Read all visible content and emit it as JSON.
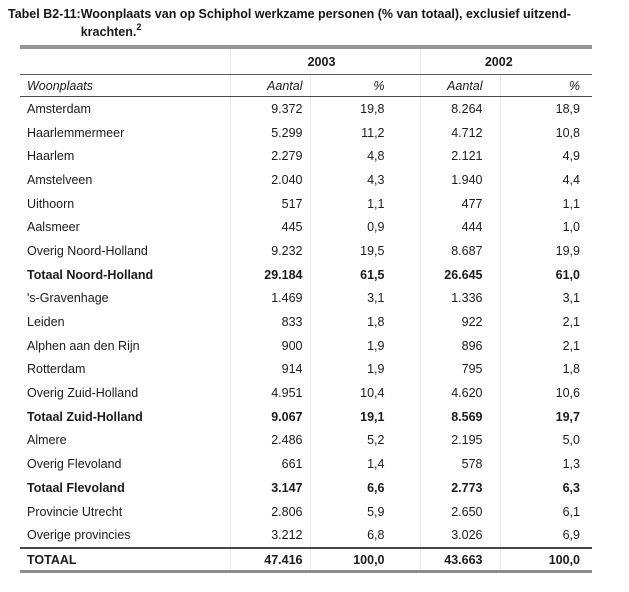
{
  "title": {
    "label": "Tabel B2-11:",
    "line1": "Woonplaats van op Schiphol werkzame personen (% van totaal), exclusief uitzend-",
    "line2": "krachten.",
    "superscript": "2"
  },
  "table": {
    "year_headers": [
      "2003",
      "2002"
    ],
    "columns": [
      "Woonplaats",
      "Aantal",
      "%",
      "Aantal",
      "%"
    ],
    "rows": [
      {
        "name": "Amsterdam",
        "values": [
          "9.372",
          "19,8",
          "8.264",
          "18,9"
        ],
        "bold": false,
        "grand": false
      },
      {
        "name": "Haarlemmermeer",
        "values": [
          "5.299",
          "11,2",
          "4.712",
          "10,8"
        ],
        "bold": false,
        "grand": false
      },
      {
        "name": "Haarlem",
        "values": [
          "2.279",
          "4,8",
          "2.121",
          "4,9"
        ],
        "bold": false,
        "grand": false
      },
      {
        "name": "Amstelveen",
        "values": [
          "2.040",
          "4,3",
          "1.940",
          "4,4"
        ],
        "bold": false,
        "grand": false
      },
      {
        "name": "Uithoorn",
        "values": [
          "517",
          "1,1",
          "477",
          "1,1"
        ],
        "bold": false,
        "grand": false
      },
      {
        "name": "Aalsmeer",
        "values": [
          "445",
          "0,9",
          "444",
          "1,0"
        ],
        "bold": false,
        "grand": false
      },
      {
        "name": "Overig Noord-Holland",
        "values": [
          "9.232",
          "19,5",
          "8.687",
          "19,9"
        ],
        "bold": false,
        "grand": false
      },
      {
        "name": "Totaal Noord-Holland",
        "values": [
          "29.184",
          "61,5",
          "26.645",
          "61,0"
        ],
        "bold": true,
        "grand": false
      },
      {
        "name": "'s-Gravenhage",
        "values": [
          "1.469",
          "3,1",
          "1.336",
          "3,1"
        ],
        "bold": false,
        "grand": false
      },
      {
        "name": "Leiden",
        "values": [
          "833",
          "1,8",
          "922",
          "2,1"
        ],
        "bold": false,
        "grand": false
      },
      {
        "name": "Alphen aan den Rijn",
        "values": [
          "900",
          "1,9",
          "896",
          "2,1"
        ],
        "bold": false,
        "grand": false
      },
      {
        "name": "Rotterdam",
        "values": [
          "914",
          "1,9",
          "795",
          "1,8"
        ],
        "bold": false,
        "grand": false
      },
      {
        "name": "Overig Zuid-Holland",
        "values": [
          "4.951",
          "10,4",
          "4.620",
          "10,6"
        ],
        "bold": false,
        "grand": false
      },
      {
        "name": "Totaal Zuid-Holland",
        "values": [
          "9.067",
          "19,1",
          "8.569",
          "19,7"
        ],
        "bold": true,
        "grand": false
      },
      {
        "name": "Almere",
        "values": [
          "2.486",
          "5,2",
          "2.195",
          "5,0"
        ],
        "bold": false,
        "grand": false
      },
      {
        "name": "Overig Flevoland",
        "values": [
          "661",
          "1,4",
          "578",
          "1,3"
        ],
        "bold": false,
        "grand": false
      },
      {
        "name": "Totaal Flevoland",
        "values": [
          "3.147",
          "6,6",
          "2.773",
          "6,3"
        ],
        "bold": true,
        "grand": false
      },
      {
        "name": "Provincie Utrecht",
        "values": [
          "2.806",
          "5,9",
          "2.650",
          "6,1"
        ],
        "bold": false,
        "grand": false
      },
      {
        "name": "Overige provincies",
        "values": [
          "3.212",
          "6,8",
          "3.026",
          "6,9"
        ],
        "bold": false,
        "grand": false
      },
      {
        "name": "TOTAAL",
        "values": [
          "47.416",
          "100,0",
          "43.663",
          "100,0"
        ],
        "bold": true,
        "grand": true
      }
    ]
  },
  "colors": {
    "top_bar": "#949494",
    "bottom_bar": "#8c8c8c",
    "rule_dark": "#4a4a4a",
    "column_divider": "#e9e9e9",
    "text": "#1b1b1b"
  }
}
